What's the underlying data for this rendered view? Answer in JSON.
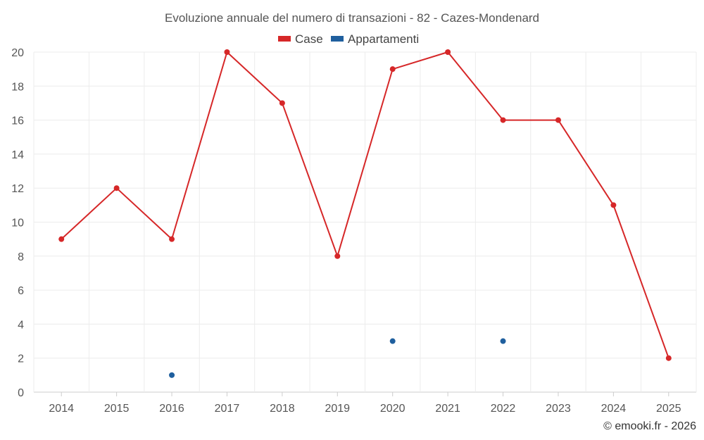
{
  "chart_data": {
    "type": "line",
    "title": "Evoluzione annuale del numero di transazioni - 82 - Cazes-Mondenard",
    "x": [
      "2014",
      "2015",
      "2016",
      "2017",
      "2018",
      "2019",
      "2020",
      "2021",
      "2022",
      "2023",
      "2024",
      "2025"
    ],
    "ylim": [
      0,
      20
    ],
    "yticks": [
      0,
      2,
      4,
      6,
      8,
      10,
      12,
      14,
      16,
      18,
      20
    ],
    "grid": true,
    "legend": "top-center",
    "series": [
      {
        "name": "Case",
        "color": "#d62728",
        "line": true,
        "values": [
          9,
          12,
          9,
          20,
          17,
          8,
          19,
          20,
          16,
          16,
          11,
          2
        ]
      },
      {
        "name": "Appartamenti",
        "color": "#1f5f9e",
        "line": false,
        "values": [
          null,
          null,
          1,
          null,
          null,
          null,
          3,
          null,
          3,
          null,
          null,
          null
        ]
      }
    ],
    "credit": "© emooki.fr - 2026"
  }
}
